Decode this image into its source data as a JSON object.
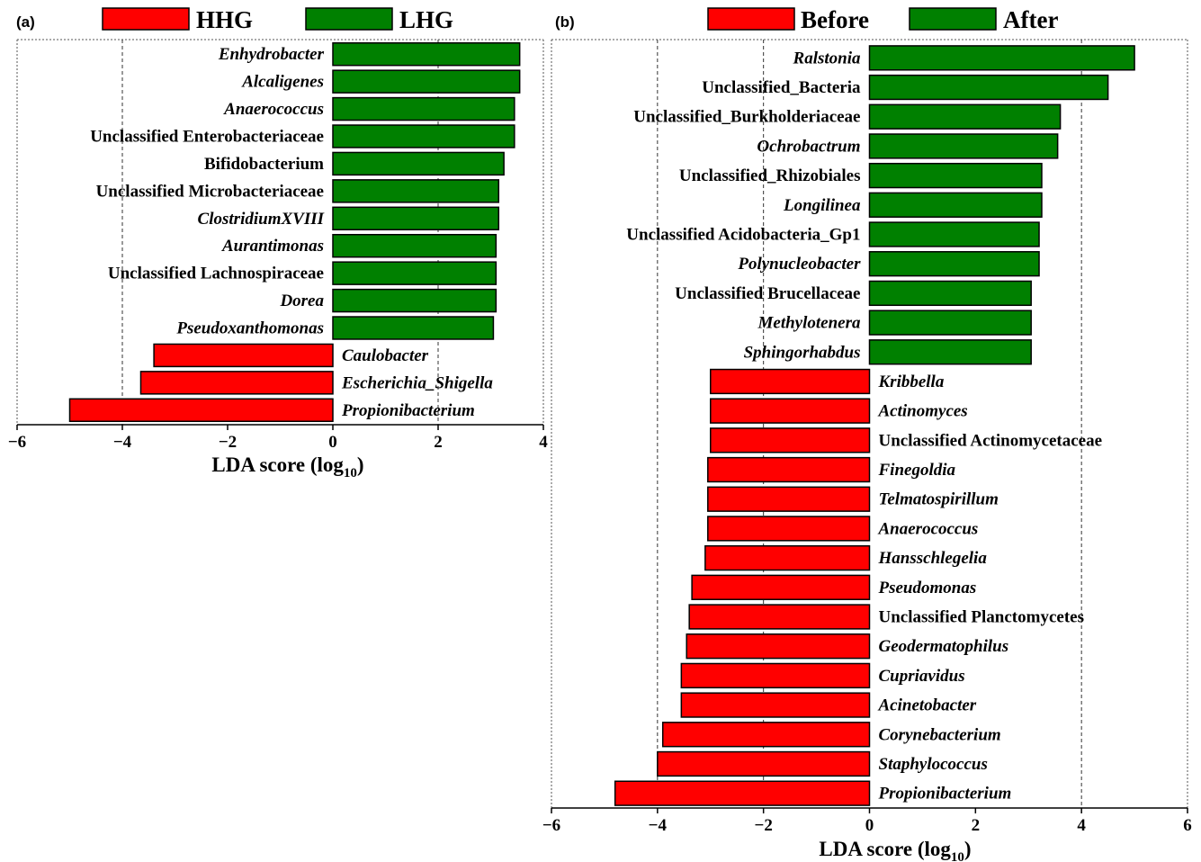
{
  "chart_data": [
    {
      "type": "bar",
      "orientation": "horizontal",
      "panel": "(a)",
      "legend": [
        {
          "name": "HHG",
          "color": "#ff0000"
        },
        {
          "name": "LHG",
          "color": "#008000"
        }
      ],
      "legend_position": "top",
      "xlabel": "LDA score (log10)",
      "xlim": [
        -6,
        4
      ],
      "xticks": [
        "−6",
        "−4",
        "−2",
        "0",
        "2",
        "4"
      ],
      "grid": "vertical dashed at -4 and 2",
      "bars": [
        {
          "label": "Enhydrobacter",
          "value": 3.55,
          "group": "LHG",
          "italic": true
        },
        {
          "label": "Alcaligenes",
          "value": 3.55,
          "group": "LHG",
          "italic": true
        },
        {
          "label": "Anaerococcus",
          "value": 3.45,
          "group": "LHG",
          "italic": true
        },
        {
          "label": "Unclassified Enterobacteriaceae",
          "value": 3.45,
          "group": "LHG",
          "italic": false
        },
        {
          "label": "Bifidobacterium",
          "value": 3.25,
          "group": "LHG",
          "italic": false
        },
        {
          "label": "Unclassified Microbacteriaceae",
          "value": 3.15,
          "group": "LHG",
          "italic": false
        },
        {
          "label": "ClostridiumXVIII",
          "value": 3.15,
          "group": "LHG",
          "italic": true
        },
        {
          "label": "Aurantimonas",
          "value": 3.1,
          "group": "LHG",
          "italic": true
        },
        {
          "label": "Unclassified Lachnospiraceae",
          "value": 3.1,
          "group": "LHG",
          "italic": false
        },
        {
          "label": "Dorea",
          "value": 3.1,
          "group": "LHG",
          "italic": true
        },
        {
          "label": "Pseudoxanthomonas",
          "value": 3.05,
          "group": "LHG",
          "italic": true
        },
        {
          "label": "Caulobacter",
          "value": -3.4,
          "group": "HHG",
          "italic": true
        },
        {
          "label": "Escherichia_Shigella",
          "value": -3.65,
          "group": "HHG",
          "italic": true
        },
        {
          "label": "Propionibacterium",
          "value": -5.0,
          "group": "HHG",
          "italic": true
        }
      ]
    },
    {
      "type": "bar",
      "orientation": "horizontal",
      "panel": "(b)",
      "legend": [
        {
          "name": "Before",
          "color": "#ff0000"
        },
        {
          "name": "After",
          "color": "#008000"
        }
      ],
      "legend_position": "top",
      "xlabel": "LDA score (log10)",
      "xlim": [
        -6,
        6
      ],
      "xticks": [
        "−6",
        "−4",
        "−2",
        "0",
        "2",
        "4",
        "6"
      ],
      "grid": "vertical dashed at -4, -2, 4",
      "bars": [
        {
          "label": "Ralstonia",
          "value": 5.0,
          "group": "After",
          "italic": true
        },
        {
          "label": "Unclassified_Bacteria",
          "value": 4.5,
          "group": "After",
          "italic": false
        },
        {
          "label": "Unclassified_Burkholderiaceae",
          "value": 3.6,
          "group": "After",
          "italic": false
        },
        {
          "label": "Ochrobactrum",
          "value": 3.55,
          "group": "After",
          "italic": true
        },
        {
          "label": "Unclassified_Rhizobiales",
          "value": 3.25,
          "group": "After",
          "italic": false
        },
        {
          "label": "Longilinea",
          "value": 3.25,
          "group": "After",
          "italic": true
        },
        {
          "label": "Unclassified Acidobacteria_Gp1",
          "value": 3.2,
          "group": "After",
          "italic": false
        },
        {
          "label": "Polynucleobacter",
          "value": 3.2,
          "group": "After",
          "italic": true
        },
        {
          "label": "Unclassified Brucellaceae",
          "value": 3.05,
          "group": "After",
          "italic": false
        },
        {
          "label": "Methylotenera",
          "value": 3.05,
          "group": "After",
          "italic": true
        },
        {
          "label": "Sphingorhabdus",
          "value": 3.05,
          "group": "After",
          "italic": true
        },
        {
          "label": "Kribbella",
          "value": -3.0,
          "group": "Before",
          "italic": true
        },
        {
          "label": "Actinomyces",
          "value": -3.0,
          "group": "Before",
          "italic": true
        },
        {
          "label": "Unclassified Actinomycetaceae",
          "value": -3.0,
          "group": "Before",
          "italic": false
        },
        {
          "label": "Finegoldia",
          "value": -3.05,
          "group": "Before",
          "italic": true
        },
        {
          "label": "Telmatospirillum",
          "value": -3.05,
          "group": "Before",
          "italic": true
        },
        {
          "label": "Anaerococcus",
          "value": -3.05,
          "group": "Before",
          "italic": true
        },
        {
          "label": "Hansschlegelia",
          "value": -3.1,
          "group": "Before",
          "italic": true
        },
        {
          "label": "Pseudomonas",
          "value": -3.35,
          "group": "Before",
          "italic": true
        },
        {
          "label": "Unclassified Planctomycetes",
          "value": -3.4,
          "group": "Before",
          "italic": false
        },
        {
          "label": "Geodermatophilus",
          "value": -3.45,
          "group": "Before",
          "italic": true
        },
        {
          "label": "Cupriavidus",
          "value": -3.55,
          "group": "Before",
          "italic": true
        },
        {
          "label": "Acinetobacter",
          "value": -3.55,
          "group": "Before",
          "italic": true
        },
        {
          "label": "Corynebacterium",
          "value": -3.9,
          "group": "Before",
          "italic": true
        },
        {
          "label": "Staphylococcus",
          "value": -4.0,
          "group": "Before",
          "italic": true
        },
        {
          "label": "Propionibacterium",
          "value": -4.8,
          "group": "Before",
          "italic": true
        }
      ]
    }
  ]
}
